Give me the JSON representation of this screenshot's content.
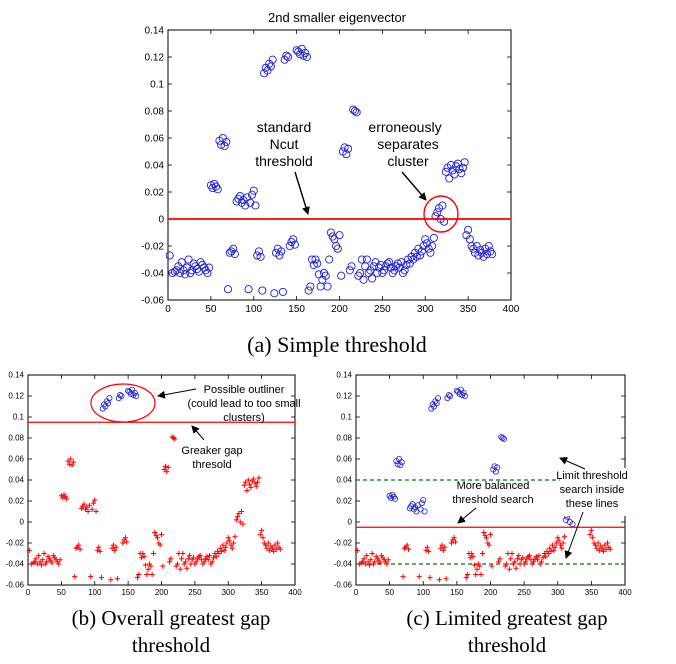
{
  "figure": {
    "captions": {
      "a": "(a) Simple threshold",
      "b_line1": "(b) Overall greatest gap",
      "b_line2": "threshold",
      "c_line1": "(c) Limited greatest gap",
      "c_line2": "threshold"
    }
  },
  "colors": {
    "blue": "#1f1fd6",
    "red": "#ff0000",
    "green": "#007a00",
    "axis": "#000000"
  },
  "chart_data": [
    {
      "id": "a",
      "type": "scatter",
      "title": "2nd smaller eigenvector",
      "xlabel": "",
      "ylabel": "",
      "xlim": [
        0,
        400
      ],
      "ylim": [
        -0.06,
        0.14
      ],
      "xticks": [
        "0",
        "50",
        "100",
        "150",
        "200",
        "250",
        "300",
        "350",
        "400"
      ],
      "yticks": [
        "-0.06",
        "-0.04",
        "-0.02",
        "0",
        "0.02",
        "0.04",
        "0.06",
        "0.08",
        "0.1",
        "0.12",
        "0.14"
      ],
      "threshold": 0.0,
      "annotations": [
        "standard",
        "Ncut",
        "threshold",
        "erroneously",
        "separates",
        "cluster"
      ],
      "series": [
        {
          "marker": "circle",
          "points": [
            [
              2,
              -0.027
            ],
            [
              5,
              -0.04
            ],
            [
              8,
              -0.039
            ],
            [
              10,
              -0.038
            ],
            [
              12,
              -0.035
            ],
            [
              14,
              -0.04
            ],
            [
              16,
              -0.032
            ],
            [
              18,
              -0.038
            ],
            [
              20,
              -0.041
            ],
            [
              22,
              -0.036
            ],
            [
              24,
              -0.03
            ],
            [
              26,
              -0.04
            ],
            [
              28,
              -0.038
            ],
            [
              30,
              -0.033
            ],
            [
              32,
              -0.035
            ],
            [
              34,
              -0.037
            ],
            [
              36,
              -0.039
            ],
            [
              38,
              -0.032
            ],
            [
              40,
              -0.034
            ],
            [
              42,
              -0.036
            ],
            [
              44,
              -0.038
            ],
            [
              46,
              -0.04
            ],
            [
              48,
              -0.036
            ],
            [
              50,
              0.025
            ],
            [
              52,
              0.023
            ],
            [
              54,
              0.026
            ],
            [
              56,
              0.024
            ],
            [
              58,
              0.022
            ],
            [
              60,
              0.058
            ],
            [
              62,
              0.055
            ],
            [
              64,
              0.06
            ],
            [
              66,
              0.054
            ],
            [
              68,
              0.057
            ],
            [
              70,
              -0.052
            ],
            [
              72,
              -0.025
            ],
            [
              74,
              -0.024
            ],
            [
              76,
              -0.022
            ],
            [
              78,
              -0.026
            ],
            [
              80,
              0.013
            ],
            [
              82,
              0.015
            ],
            [
              84,
              0.017
            ],
            [
              86,
              0.012
            ],
            [
              88,
              0.014
            ],
            [
              90,
              0.01
            ],
            [
              92,
              0.016
            ],
            [
              94,
              -0.052
            ],
            [
              96,
              0.012
            ],
            [
              98,
              0.018
            ],
            [
              100,
              0.021
            ],
            [
              102,
              0.01
            ],
            [
              104,
              -0.027
            ],
            [
              106,
              -0.024
            ],
            [
              108,
              -0.028
            ],
            [
              110,
              -0.053
            ],
            [
              112,
              0.108
            ],
            [
              114,
              0.112
            ],
            [
              116,
              0.11
            ],
            [
              118,
              0.115
            ],
            [
              120,
              0.113
            ],
            [
              122,
              0.118
            ],
            [
              124,
              -0.055
            ],
            [
              126,
              -0.025
            ],
            [
              128,
              -0.022
            ],
            [
              130,
              -0.027
            ],
            [
              132,
              -0.024
            ],
            [
              134,
              -0.054
            ],
            [
              136,
              0.118
            ],
            [
              138,
              0.121
            ],
            [
              140,
              0.12
            ],
            [
              142,
              -0.02
            ],
            [
              144,
              -0.017
            ],
            [
              146,
              -0.015
            ],
            [
              148,
              -0.019
            ],
            [
              150,
              0.125
            ],
            [
              152,
              0.124
            ],
            [
              154,
              0.122
            ],
            [
              156,
              0.126
            ],
            [
              158,
              0.121
            ],
            [
              160,
              0.123
            ],
            [
              162,
              0.12
            ],
            [
              164,
              -0.053
            ],
            [
              166,
              -0.05
            ],
            [
              168,
              -0.03
            ],
            [
              170,
              -0.034
            ],
            [
              172,
              -0.03
            ],
            [
              174,
              -0.033
            ],
            [
              176,
              -0.041
            ],
            [
              178,
              -0.05
            ],
            [
              180,
              -0.045
            ],
            [
              182,
              -0.04
            ],
            [
              184,
              -0.042
            ],
            [
              186,
              -0.05
            ],
            [
              188,
              -0.03
            ],
            [
              190,
              -0.01
            ],
            [
              192,
              -0.013
            ],
            [
              194,
              -0.015
            ],
            [
              196,
              -0.02
            ],
            [
              198,
              -0.022
            ],
            [
              200,
              -0.012
            ],
            [
              202,
              -0.042
            ],
            [
              204,
              0.05
            ],
            [
              206,
              0.053
            ],
            [
              208,
              0.048
            ],
            [
              210,
              0.052
            ],
            [
              212,
              -0.038
            ],
            [
              214,
              -0.035
            ],
            [
              216,
              0.081
            ],
            [
              218,
              0.08
            ],
            [
              220,
              0.079
            ],
            [
              222,
              -0.042
            ],
            [
              224,
              -0.04
            ],
            [
              226,
              -0.03
            ],
            [
              228,
              -0.045
            ],
            [
              230,
              -0.035
            ],
            [
              232,
              -0.03
            ],
            [
              234,
              -0.04
            ],
            [
              236,
              -0.038
            ],
            [
              238,
              -0.044
            ],
            [
              240,
              -0.035
            ],
            [
              242,
              -0.032
            ],
            [
              244,
              -0.04
            ],
            [
              246,
              -0.036
            ],
            [
              248,
              -0.034
            ],
            [
              250,
              -0.04
            ],
            [
              252,
              -0.038
            ],
            [
              254,
              -0.035
            ],
            [
              256,
              -0.033
            ],
            [
              258,
              -0.032
            ],
            [
              260,
              -0.036
            ],
            [
              262,
              -0.04
            ],
            [
              264,
              -0.038
            ],
            [
              266,
              -0.035
            ],
            [
              268,
              -0.033
            ],
            [
              270,
              -0.036
            ],
            [
              272,
              -0.032
            ],
            [
              274,
              -0.04
            ],
            [
              276,
              -0.038
            ],
            [
              278,
              -0.034
            ],
            [
              280,
              -0.03
            ],
            [
              282,
              -0.033
            ],
            [
              284,
              -0.028
            ],
            [
              286,
              -0.03
            ],
            [
              288,
              -0.025
            ],
            [
              290,
              -0.028
            ],
            [
              292,
              -0.022
            ],
            [
              294,
              -0.027
            ],
            [
              296,
              -0.024
            ],
            [
              298,
              -0.02
            ],
            [
              300,
              -0.015
            ],
            [
              302,
              -0.018
            ],
            [
              304,
              -0.022
            ],
            [
              306,
              -0.025
            ],
            [
              308,
              -0.02
            ],
            [
              310,
              -0.014
            ],
            [
              312,
              0.002
            ],
            [
              314,
              0.005
            ],
            [
              316,
              0.008
            ],
            [
              318,
              0.0
            ],
            [
              320,
              0.01
            ],
            [
              322,
              -0.002
            ],
            [
              324,
              0.035
            ],
            [
              326,
              0.038
            ],
            [
              328,
              0.03
            ],
            [
              330,
              0.04
            ],
            [
              332,
              0.036
            ],
            [
              334,
              0.033
            ],
            [
              336,
              0.039
            ],
            [
              338,
              0.041
            ],
            [
              340,
              0.037
            ],
            [
              342,
              0.034
            ],
            [
              344,
              0.038
            ],
            [
              346,
              0.042
            ],
            [
              348,
              -0.012
            ],
            [
              350,
              -0.008
            ],
            [
              352,
              -0.015
            ],
            [
              354,
              -0.02
            ],
            [
              356,
              -0.022
            ],
            [
              358,
              -0.025
            ],
            [
              360,
              -0.02
            ],
            [
              362,
              -0.027
            ],
            [
              364,
              -0.023
            ],
            [
              366,
              -0.025
            ],
            [
              368,
              -0.028
            ],
            [
              370,
              -0.022
            ],
            [
              372,
              -0.026
            ],
            [
              374,
              -0.02
            ],
            [
              376,
              -0.024
            ],
            [
              378,
              -0.026
            ]
          ]
        }
      ]
    },
    {
      "id": "b",
      "type": "scatter",
      "title": "",
      "xlim": [
        0,
        400
      ],
      "ylim": [
        -0.06,
        0.14
      ],
      "xticks": [
        "0",
        "50",
        "100",
        "150",
        "200",
        "250",
        "300",
        "350",
        "400"
      ],
      "yticks": [
        "-0.06",
        "-0.04",
        "-0.02",
        "0",
        "0.02",
        "0.04",
        "0.06",
        "0.08",
        "0.1",
        "0.12",
        "0.14"
      ],
      "threshold": 0.095,
      "annotations": [
        "Possible outliner",
        "(could lead to too small",
        "clusters)",
        "Greaker gap",
        "thresold"
      ],
      "series": [
        {
          "marker": "plus",
          "color": "red",
          "range": [
            -0.06,
            0.095
          ]
        },
        {
          "marker": "circle",
          "color": "blue",
          "range": [
            0.095,
            0.14
          ]
        }
      ]
    },
    {
      "id": "c",
      "type": "scatter",
      "title": "",
      "xlim": [
        0,
        400
      ],
      "ylim": [
        -0.06,
        0.14
      ],
      "xticks": [
        "0",
        "50",
        "100",
        "150",
        "200",
        "250",
        "300",
        "350",
        "400"
      ],
      "yticks": [
        "-0.06",
        "-0.04",
        "-0.02",
        "0",
        "0.02",
        "0.04",
        "0.06",
        "0.08",
        "0.1",
        "0.12",
        "0.14"
      ],
      "threshold": -0.005,
      "limits": [
        0.04,
        -0.04
      ],
      "annotations": [
        "More balanced",
        "threshold search",
        "Limit threshold",
        "search inside",
        "these lines"
      ],
      "series": [
        {
          "marker": "plus",
          "color": "red",
          "range": [
            -0.06,
            -0.005
          ]
        },
        {
          "marker": "circle",
          "color": "blue",
          "range": [
            -0.005,
            0.14
          ]
        }
      ]
    }
  ]
}
